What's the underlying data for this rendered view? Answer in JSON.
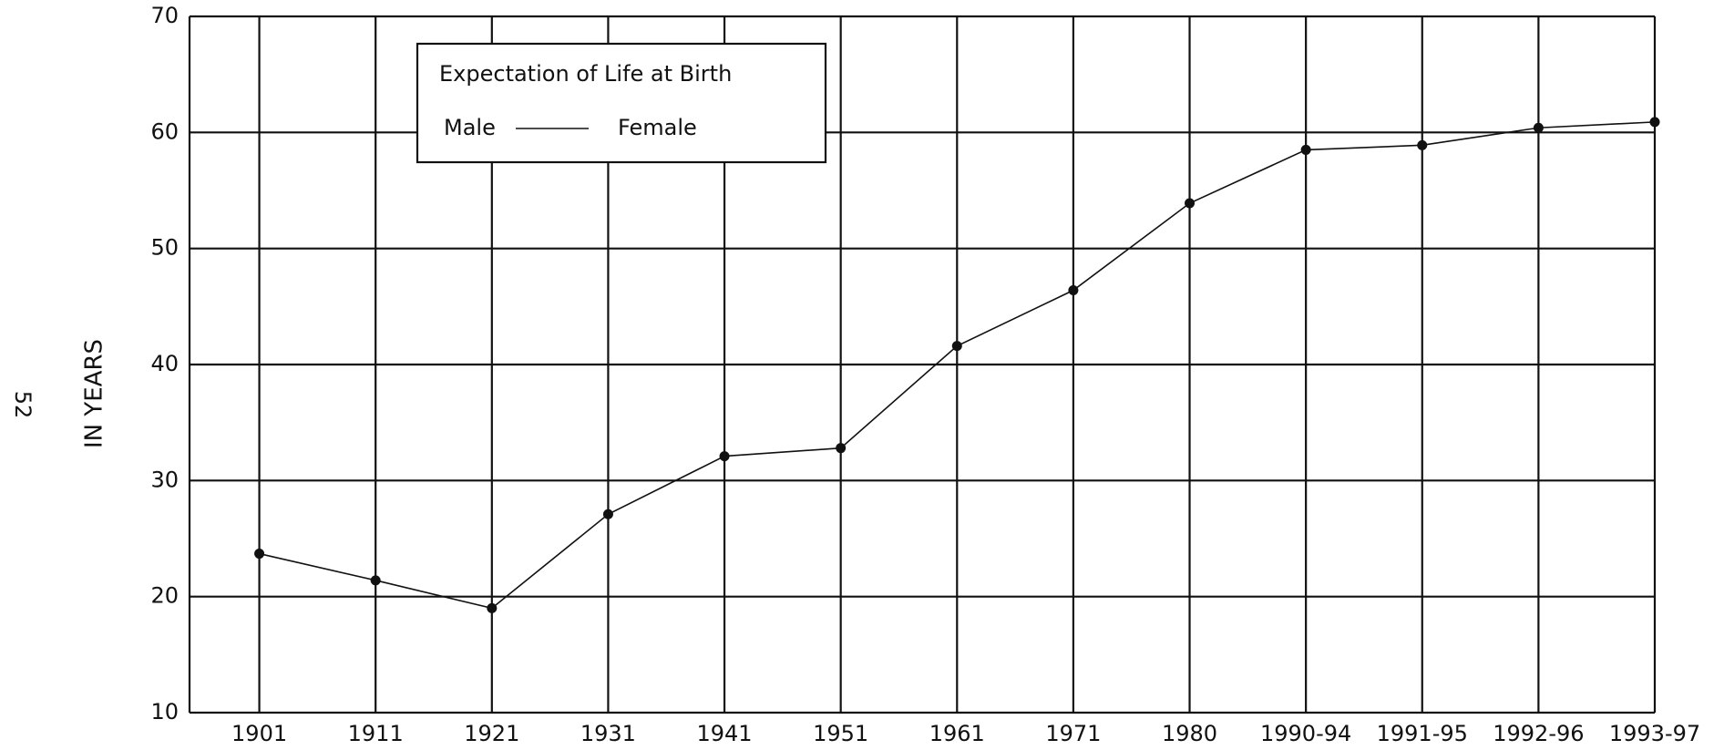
{
  "chart_data": {
    "type": "line",
    "ylabel": "IN YEARS",
    "page_number": "52",
    "legend": {
      "title": "Expectation of Life at Birth",
      "labels": [
        "Male",
        "Female"
      ]
    },
    "categories": [
      "1901",
      "1911",
      "1921",
      "1931",
      "1941",
      "1951",
      "1961",
      "1971",
      "1980",
      "1990-94",
      "1991-95",
      "1992-96",
      "1993-97"
    ],
    "series": [
      {
        "color": "#111111",
        "values": [
          23.7,
          21.4,
          19.0,
          27.1,
          32.1,
          32.8,
          41.6,
          46.4,
          53.9,
          58.5,
          58.9,
          60.4,
          60.9
        ]
      }
    ],
    "ylim": [
      10,
      70
    ],
    "yticks": [
      10,
      20,
      30,
      40,
      50,
      60,
      70
    ],
    "grid": true
  }
}
